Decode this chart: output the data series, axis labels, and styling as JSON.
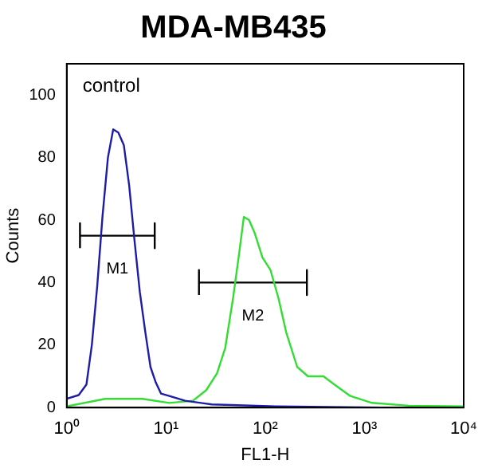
{
  "chart_data": {
    "type": "line",
    "title": "MDA-MB435",
    "xlabel": "FL1-H",
    "ylabel": "Counts",
    "log": "x",
    "grid": false,
    "legend": false,
    "marker": "none",
    "xlim": [
      1,
      10000
    ],
    "ylim": [
      0,
      110
    ],
    "xticks": [
      {
        "value": 1,
        "label": "10⁰"
      },
      {
        "value": 10,
        "label": "10¹"
      },
      {
        "value": 100,
        "label": "10²"
      },
      {
        "value": 1000,
        "label": "10³"
      },
      {
        "value": 10000,
        "label": "10⁴"
      }
    ],
    "yticks": [
      0,
      20,
      40,
      60,
      80,
      100
    ],
    "annotations": [
      "control"
    ],
    "series": [
      {
        "color": "#1c1ca8",
        "x": [
          1,
          1.32,
          1.58,
          1.79,
          2.03,
          2.29,
          2.6,
          2.94,
          3.31,
          3.76,
          4.26,
          4.8,
          5.45,
          6.2,
          6.98,
          7.9,
          8.9,
          10.8,
          15.6,
          29,
          127,
          1520
        ],
        "values": [
          2.8,
          4,
          7.4,
          20,
          39,
          61,
          80,
          89,
          88,
          84,
          71,
          54,
          37,
          24,
          13,
          8,
          4.5,
          3.7,
          2.2,
          1,
          0.4,
          0
        ]
      },
      {
        "color": "#33dd33",
        "x": [
          1,
          2.44,
          5.8,
          10.8,
          18.7,
          25.5,
          32.7,
          39.5,
          47.4,
          53.9,
          60.9,
          68.8,
          78,
          93.9,
          113,
          136,
          163,
          210,
          270,
          387,
          497,
          720,
          1190,
          2800,
          10000
        ],
        "values": [
          0.4,
          2.8,
          2.8,
          1.5,
          2.2,
          5.6,
          11,
          19,
          35,
          48,
          61,
          60,
          56,
          48,
          44,
          35,
          24,
          13,
          10,
          10,
          7.4,
          3.7,
          1.5,
          0.6,
          0.4
        ]
      },
      {
        "type": "line",
        "name": "M1",
        "color": "#000000",
        "x": [
          1.36,
          1.36,
          1.36,
          7.7,
          7.7,
          7.7
        ],
        "values": [
          51,
          59,
          55,
          55,
          59,
          51
        ]
      },
      {
        "type": "line",
        "name": "M2",
        "color": "#000000",
        "x": [
          21.5,
          21.5,
          21.5,
          263,
          263,
          263
        ],
        "values": [
          36,
          44,
          40,
          40,
          44,
          36
        ]
      }
    ]
  }
}
